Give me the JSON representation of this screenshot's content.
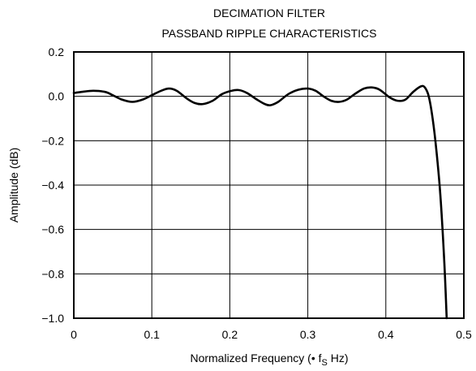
{
  "chart_data": {
    "type": "line",
    "title_lines": [
      "DECIMATION FILTER",
      "PASSBAND RIPPLE CHARACTERISTICS"
    ],
    "xlabel": "Normalized Frequency (• f",
    "xlabel_sub": "S",
    "xlabel_tail": " Hz)",
    "ylabel": "Amplitude (dB)",
    "xlim": [
      0,
      0.5
    ],
    "ylim": [
      -1.0,
      0.2
    ],
    "xticks": [
      0,
      0.1,
      0.2,
      0.3,
      0.4,
      0.5
    ],
    "xtick_labels": [
      "0",
      "0.1",
      "0.2",
      "0.3",
      "0.4",
      "0.5"
    ],
    "yticks": [
      0.2,
      0.0,
      -0.2,
      -0.4,
      -0.6,
      -0.8,
      -1.0
    ],
    "ytick_labels": [
      "0.2",
      "0.0",
      "−0.2",
      "−0.4",
      "−0.6",
      "−0.8",
      "−1.0"
    ],
    "grid": true,
    "series": [
      {
        "x": [
          0,
          0.01,
          0.025,
          0.04,
          0.05,
          0.062,
          0.075,
          0.088,
          0.1,
          0.112,
          0.122,
          0.132,
          0.145,
          0.155,
          0.165,
          0.178,
          0.19,
          0.202,
          0.212,
          0.222,
          0.235,
          0.245,
          0.252,
          0.262,
          0.275,
          0.288,
          0.3,
          0.31,
          0.32,
          0.33,
          0.34,
          0.35,
          0.36,
          0.372,
          0.382,
          0.392,
          0.405,
          0.415,
          0.425,
          0.435,
          0.445,
          0.45,
          0.455,
          0.46,
          0.465,
          0.47,
          0.475,
          0.478
        ],
        "y": [
          0.015,
          0.02,
          0.025,
          0.02,
          0.005,
          -0.015,
          -0.025,
          -0.015,
          0.005,
          0.025,
          0.035,
          0.025,
          -0.01,
          -0.03,
          -0.035,
          -0.02,
          0.01,
          0.025,
          0.028,
          0.015,
          -0.015,
          -0.035,
          -0.04,
          -0.025,
          0.01,
          0.03,
          0.035,
          0.025,
          0.0,
          -0.02,
          -0.025,
          -0.015,
          0.01,
          0.035,
          0.04,
          0.03,
          -0.005,
          -0.02,
          -0.015,
          0.02,
          0.045,
          0.04,
          0.0,
          -0.1,
          -0.25,
          -0.45,
          -0.75,
          -1.0
        ]
      }
    ]
  }
}
